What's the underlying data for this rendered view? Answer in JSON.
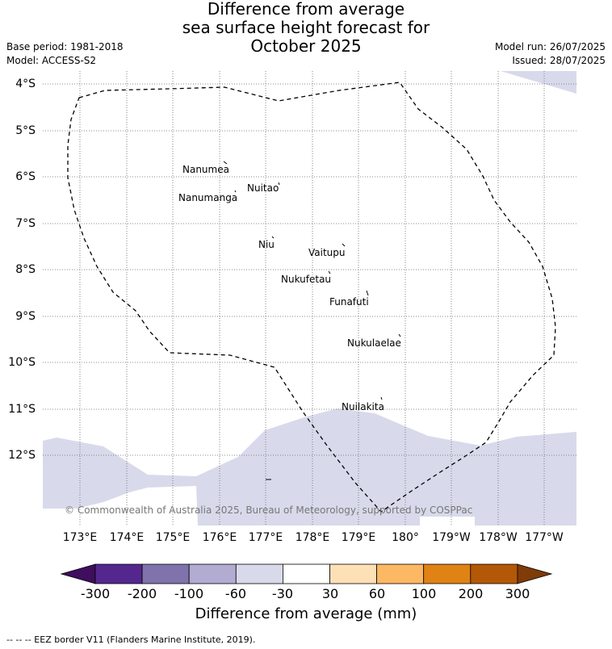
{
  "title_lines": [
    "Difference from average",
    "sea surface height forecast for",
    "October 2025"
  ],
  "meta_left": [
    "Base period: 1981-2018",
    "Model: ACCESS-S2"
  ],
  "meta_right": [
    "Model run: 26/07/2025",
    "Issued: 28/07/2025"
  ],
  "lat_labels": [
    "4°S",
    "5°S",
    "6°S",
    "7°S",
    "8°S",
    "9°S",
    "10°S",
    "11°S",
    "12°S"
  ],
  "lon_labels": [
    "173°E",
    "174°E",
    "175°E",
    "176°E",
    "177°E",
    "178°E",
    "179°E",
    "180°",
    "179°W",
    "178°W",
    "177°W"
  ],
  "places": [
    "Nanumea",
    "Nuitao",
    "Nanumanga",
    "Niu",
    "Vaitupu",
    "Nukufetau",
    "Funafuti",
    "Nukulaelae",
    "Nuilakita"
  ],
  "copyright": "© Commonwealth of Australia 2025, Bureau of Meteorology, supported by COSPPac",
  "colorbar": {
    "ticks": [
      "-300",
      "-200",
      "-100",
      "-60",
      "-30",
      "30",
      "60",
      "100",
      "200",
      "300"
    ],
    "colors": [
      "#3f0e5e",
      "#54278f",
      "#8073ac",
      "#b2abd2",
      "#d8daeb",
      "#ffffff",
      "#fee0b6",
      "#fdb863",
      "#e08214",
      "#b35806",
      "#7f3b08"
    ],
    "title": "Difference from average (mm)"
  },
  "legend_text": "--  --  -- EEZ border V11 (Flanders Marine Institute, 2019)."
}
